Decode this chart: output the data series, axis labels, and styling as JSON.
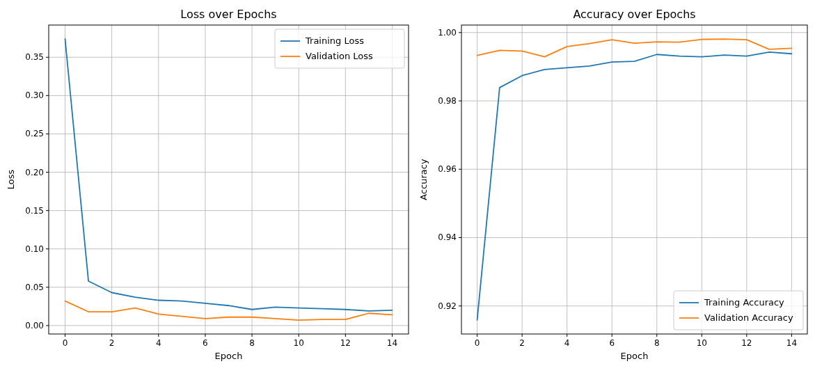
{
  "chart_data": [
    {
      "type": "line",
      "title": "Loss over Epochs",
      "xlabel": "Epoch",
      "ylabel": "Loss",
      "x": [
        0,
        1,
        2,
        3,
        4,
        5,
        6,
        7,
        8,
        9,
        10,
        11,
        12,
        13,
        14
      ],
      "series": [
        {
          "name": "Training Loss",
          "color": "#1f77b4",
          "values": [
            0.374,
            0.058,
            0.043,
            0.037,
            0.033,
            0.032,
            0.029,
            0.026,
            0.021,
            0.024,
            0.023,
            0.022,
            0.021,
            0.019,
            0.02
          ]
        },
        {
          "name": "Validation Loss",
          "color": "#ff7f0e",
          "values": [
            0.032,
            0.018,
            0.018,
            0.023,
            0.015,
            0.012,
            0.009,
            0.011,
            0.011,
            0.009,
            0.007,
            0.008,
            0.008,
            0.016,
            0.014
          ]
        }
      ],
      "xlim": [
        -0.7,
        14.7
      ],
      "xticks": [
        0,
        2,
        4,
        6,
        8,
        10,
        12,
        14
      ],
      "ylim": [
        -0.011,
        0.392
      ],
      "yticks": [
        {
          "value": 0,
          "label": "0.00"
        },
        {
          "value": 0.05,
          "label": "0.05"
        },
        {
          "value": 0.1,
          "label": "0.10"
        },
        {
          "value": 0.15,
          "label": "0.15"
        },
        {
          "value": 0.2,
          "label": "0.20"
        },
        {
          "value": 0.25,
          "label": "0.25"
        },
        {
          "value": 0.3,
          "label": "0.30"
        },
        {
          "value": 0.35,
          "label": "0.35"
        }
      ],
      "grid": true,
      "legend": "top right"
    },
    {
      "type": "line",
      "title": "Accuracy over Epochs",
      "xlabel": "Epoch",
      "ylabel": "Accuracy",
      "x": [
        0,
        1,
        2,
        3,
        4,
        5,
        6,
        7,
        8,
        9,
        10,
        11,
        12,
        13,
        14
      ],
      "series": [
        {
          "name": "Training Accuracy",
          "color": "#1f77b4",
          "values": [
            0.9159,
            0.9839,
            0.9874,
            0.9892,
            0.9897,
            0.9902,
            0.9914,
            0.9916,
            0.9936,
            0.9931,
            0.9929,
            0.9934,
            0.9931,
            0.9943,
            0.9938
          ]
        },
        {
          "name": "Validation Accuracy",
          "color": "#ff7f0e",
          "values": [
            0.9933,
            0.9948,
            0.9946,
            0.9929,
            0.9959,
            0.9968,
            0.9979,
            0.9969,
            0.9973,
            0.9972,
            0.998,
            0.9981,
            0.9979,
            0.9951,
            0.9954
          ]
        }
      ],
      "xlim": [
        -0.7,
        14.7
      ],
      "xticks": [
        0,
        2,
        4,
        6,
        8,
        10,
        12,
        14
      ],
      "ylim": [
        0.9118,
        1.0022
      ],
      "yticks": [
        {
          "value": 0.92,
          "label": "0.92"
        },
        {
          "value": 0.94,
          "label": "0.94"
        },
        {
          "value": 0.96,
          "label": "0.96"
        },
        {
          "value": 0.98,
          "label": "0.98"
        },
        {
          "value": 1,
          "label": "1.00"
        }
      ],
      "grid": true,
      "legend": "bottom right"
    }
  ]
}
